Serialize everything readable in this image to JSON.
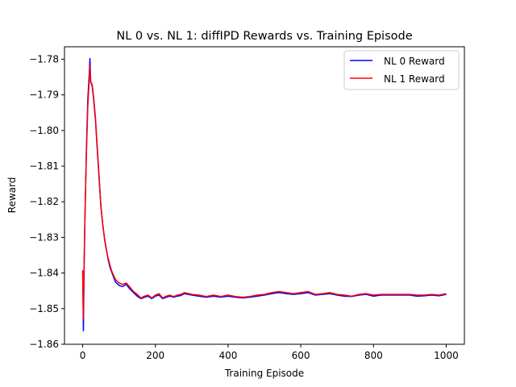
{
  "chart_data": {
    "type": "line",
    "title": "NL 0 vs. NL 1: diffIPD Rewards vs. Training Episode",
    "xlabel": "Training Episode",
    "ylabel": "Reward",
    "xlim": [
      -50,
      1050
    ],
    "ylim": [
      -1.86,
      -1.7765
    ],
    "xticks": [
      0,
      200,
      400,
      600,
      800,
      1000
    ],
    "xtick_labels": [
      "0",
      "200",
      "400",
      "600",
      "800",
      "1000"
    ],
    "yticks": [
      -1.86,
      -1.85,
      -1.84,
      -1.83,
      -1.82,
      -1.81,
      -1.8,
      -1.79,
      -1.78
    ],
    "ytick_labels": [
      "−1.86",
      "−1.85",
      "−1.84",
      "−1.83",
      "−1.82",
      "−1.81",
      "−1.80",
      "−1.79",
      "−1.78"
    ],
    "grid": false,
    "legend_position": "top-right",
    "series": [
      {
        "name": "NL 0 Reward",
        "color": "#0000ff",
        "x": [
          0,
          2,
          4,
          6,
          10,
          14,
          18,
          20,
          22,
          26,
          30,
          35,
          40,
          45,
          50,
          55,
          60,
          65,
          70,
          75,
          80,
          90,
          100,
          110,
          120,
          130,
          140,
          150,
          160,
          170,
          180,
          190,
          200,
          210,
          220,
          230,
          240,
          250,
          260,
          270,
          280,
          300,
          320,
          340,
          360,
          380,
          400,
          420,
          440,
          460,
          480,
          500,
          520,
          540,
          560,
          580,
          600,
          620,
          640,
          660,
          680,
          700,
          720,
          740,
          760,
          780,
          800,
          820,
          840,
          860,
          880,
          900,
          920,
          940,
          960,
          980,
          1000
        ],
        "y": [
          -1.8395,
          -1.8562,
          -1.8385,
          -1.826,
          -1.8065,
          -1.7915,
          -1.7842,
          -1.7798,
          -1.7862,
          -1.7875,
          -1.7912,
          -1.7968,
          -1.8052,
          -1.8132,
          -1.8212,
          -1.8262,
          -1.8302,
          -1.8332,
          -1.8362,
          -1.8384,
          -1.8398,
          -1.8425,
          -1.8435,
          -1.8438,
          -1.8432,
          -1.8445,
          -1.8455,
          -1.8465,
          -1.8472,
          -1.8468,
          -1.8465,
          -1.8472,
          -1.8465,
          -1.8462,
          -1.8472,
          -1.8468,
          -1.8465,
          -1.8468,
          -1.8465,
          -1.8463,
          -1.8458,
          -1.8462,
          -1.8465,
          -1.8468,
          -1.8465,
          -1.8468,
          -1.8465,
          -1.8468,
          -1.847,
          -1.8468,
          -1.8465,
          -1.8462,
          -1.8458,
          -1.8455,
          -1.8458,
          -1.846,
          -1.8458,
          -1.8455,
          -1.8462,
          -1.846,
          -1.8458,
          -1.8462,
          -1.8465,
          -1.8466,
          -1.8462,
          -1.846,
          -1.8465,
          -1.8462,
          -1.8462,
          -1.8462,
          -1.8462,
          -1.8462,
          -1.8465,
          -1.8464,
          -1.8462,
          -1.8464,
          -1.846
        ]
      },
      {
        "name": "NL 1 Reward",
        "color": "#ff0000",
        "x": [
          0,
          2,
          4,
          6,
          10,
          14,
          18,
          20,
          22,
          26,
          30,
          35,
          40,
          45,
          50,
          55,
          60,
          65,
          70,
          75,
          80,
          90,
          100,
          110,
          120,
          130,
          140,
          150,
          160,
          170,
          180,
          190,
          200,
          210,
          220,
          230,
          240,
          250,
          260,
          270,
          280,
          300,
          320,
          340,
          360,
          380,
          400,
          420,
          440,
          460,
          480,
          500,
          520,
          540,
          560,
          580,
          600,
          620,
          640,
          660,
          680,
          700,
          720,
          740,
          760,
          780,
          800,
          820,
          840,
          860,
          880,
          900,
          920,
          940,
          960,
          980,
          1000
        ],
        "y": [
          -1.8392,
          -1.8528,
          -1.8362,
          -1.8255,
          -1.8075,
          -1.7935,
          -1.786,
          -1.7818,
          -1.7865,
          -1.787,
          -1.7905,
          -1.7962,
          -1.8045,
          -1.8125,
          -1.821,
          -1.8262,
          -1.8305,
          -1.8335,
          -1.8358,
          -1.8378,
          -1.8395,
          -1.8418,
          -1.8428,
          -1.8432,
          -1.8428,
          -1.844,
          -1.8452,
          -1.846,
          -1.847,
          -1.8465,
          -1.8462,
          -1.847,
          -1.8462,
          -1.8458,
          -1.847,
          -1.8465,
          -1.8462,
          -1.8466,
          -1.8462,
          -1.846,
          -1.8455,
          -1.846,
          -1.8462,
          -1.8466,
          -1.8462,
          -1.8466,
          -1.8462,
          -1.8466,
          -1.8468,
          -1.8466,
          -1.8462,
          -1.846,
          -1.8455,
          -1.8452,
          -1.8455,
          -1.8458,
          -1.8455,
          -1.8452,
          -1.846,
          -1.8458,
          -1.8455,
          -1.846,
          -1.8462,
          -1.8465,
          -1.846,
          -1.8458,
          -1.8462,
          -1.846,
          -1.846,
          -1.846,
          -1.846,
          -1.846,
          -1.8462,
          -1.8462,
          -1.846,
          -1.8462,
          -1.8458
        ]
      }
    ]
  }
}
